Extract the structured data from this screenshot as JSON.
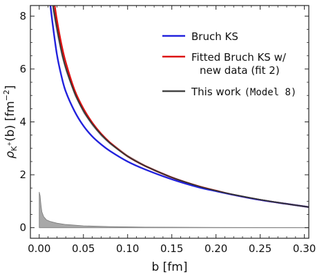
{
  "chart_data": {
    "type": "line",
    "title": "",
    "xlabel": "b [fm]",
    "ylabel": {
      "rho": "ρ",
      "sub": "K",
      "sup": "+",
      "rest": "(b) [fm",
      "exp": "−2",
      "close": "]"
    },
    "xlim": [
      -0.01,
      0.305
    ],
    "ylim": [
      -0.4,
      8.4
    ],
    "x_ticks": [
      {
        "value": 0.0,
        "label": "0.00"
      },
      {
        "value": 0.05,
        "label": "0.05"
      },
      {
        "value": 0.1,
        "label": "0.10"
      },
      {
        "value": 0.15,
        "label": "0.15"
      },
      {
        "value": 0.2,
        "label": "0.20"
      },
      {
        "value": 0.25,
        "label": "0.25"
      },
      {
        "value": 0.3,
        "label": "0.30"
      }
    ],
    "y_ticks": [
      {
        "value": 0,
        "label": "0"
      },
      {
        "value": 2,
        "label": "2"
      },
      {
        "value": 4,
        "label": "4"
      },
      {
        "value": 6,
        "label": "6"
      },
      {
        "value": 8,
        "label": "8"
      }
    ],
    "grid": false,
    "legend_position": "top-right",
    "series": [
      {
        "name": "Bruch KS",
        "color": "#2222dd",
        "x": [
          0.012,
          0.015,
          0.02,
          0.025,
          0.03,
          0.04,
          0.05,
          0.06,
          0.07,
          0.08,
          0.1,
          0.12,
          0.15,
          0.18,
          0.2,
          0.22,
          0.25,
          0.28,
          0.305
        ],
        "y": [
          8.6,
          7.75,
          6.55,
          5.75,
          5.15,
          4.4,
          3.85,
          3.45,
          3.15,
          2.9,
          2.5,
          2.2,
          1.83,
          1.53,
          1.38,
          1.24,
          1.05,
          0.9,
          0.78
        ]
      },
      {
        "name": "Fitted Bruch KS w/ new data (fit 2)",
        "color": "#dd1111",
        "x": [
          0.017,
          0.02,
          0.025,
          0.03,
          0.04,
          0.05,
          0.06,
          0.07,
          0.08,
          0.1,
          0.12,
          0.15,
          0.18,
          0.2,
          0.22,
          0.25,
          0.28,
          0.305
        ],
        "y": [
          8.5,
          7.85,
          6.95,
          6.25,
          5.2,
          4.5,
          3.97,
          3.55,
          3.22,
          2.7,
          2.33,
          1.9,
          1.57,
          1.4,
          1.24,
          1.05,
          0.9,
          0.78
        ]
      },
      {
        "name": "This work (Model 8)",
        "color": "#333333",
        "x": [
          0.015,
          0.02,
          0.025,
          0.03,
          0.04,
          0.05,
          0.06,
          0.07,
          0.08,
          0.1,
          0.12,
          0.15,
          0.18,
          0.2,
          0.22,
          0.25,
          0.28,
          0.305
        ],
        "y": [
          8.5,
          7.55,
          6.7,
          6.05,
          5.1,
          4.42,
          3.92,
          3.52,
          3.2,
          2.7,
          2.33,
          1.9,
          1.57,
          1.4,
          1.25,
          1.06,
          0.9,
          0.78
        ]
      }
    ],
    "band": {
      "color": "#999999",
      "x": [
        0.015,
        0.02,
        0.025,
        0.03,
        0.04,
        0.05,
        0.06,
        0.07,
        0.08,
        0.1,
        0.12,
        0.15,
        0.18,
        0.2,
        0.22,
        0.25,
        0.28,
        0.305
      ],
      "lower": [
        8.2,
        7.3,
        6.5,
        5.9,
        4.98,
        4.32,
        3.84,
        3.45,
        3.14,
        2.65,
        2.29,
        1.87,
        1.55,
        1.38,
        1.23,
        1.05,
        0.89,
        0.77
      ],
      "upper": [
        8.6,
        7.8,
        6.9,
        6.2,
        5.22,
        4.52,
        4.0,
        3.6,
        3.26,
        2.75,
        2.37,
        1.93,
        1.59,
        1.42,
        1.27,
        1.08,
        0.92,
        0.8
      ]
    },
    "filled_area": {
      "color": "#a8a8a8",
      "x": [
        0.0,
        0.001,
        0.002,
        0.003,
        0.005,
        0.008,
        0.012,
        0.02,
        0.03,
        0.05,
        0.08,
        0.12,
        0.2,
        0.305
      ],
      "y": [
        1.35,
        1.2,
        0.85,
        0.6,
        0.42,
        0.3,
        0.24,
        0.17,
        0.12,
        0.07,
        0.04,
        0.02,
        0.01,
        0.005
      ]
    }
  }
}
